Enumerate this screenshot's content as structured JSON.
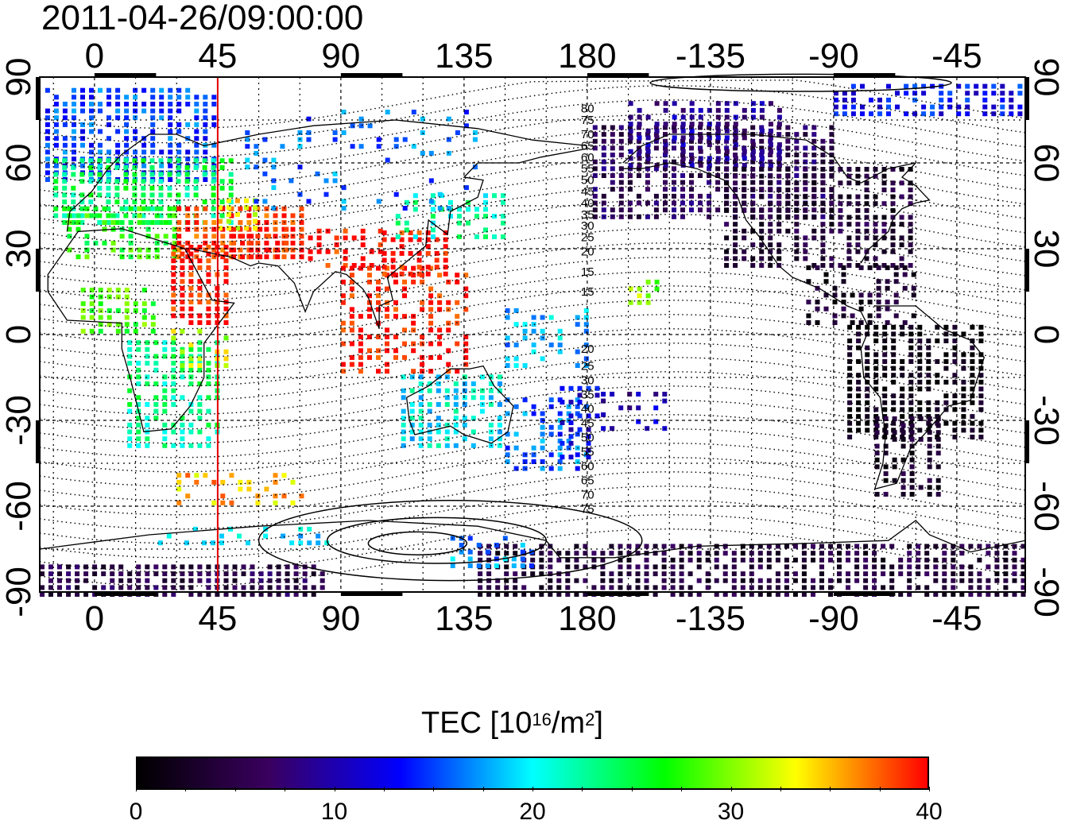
{
  "title": "2011-04-26/09:00:00",
  "map": {
    "top_lon_ticks": [
      "0",
      "45",
      "90",
      "135",
      "180",
      "-135",
      "-90",
      "-45"
    ],
    "bottom_lon_ticks": [
      "0",
      "45",
      "90",
      "135",
      "180",
      "-135",
      "-90",
      "-45"
    ],
    "left_lat_ticks": [
      "90",
      "60",
      "30",
      "0",
      "-30",
      "-60",
      "-90"
    ],
    "right_lat_ticks": [
      "90",
      "60",
      "30",
      "0",
      "-30",
      "-60",
      "-90"
    ],
    "lon_range": [
      -20,
      340
    ],
    "lat_range": [
      -90,
      90
    ],
    "marker_longitude": 45,
    "marker_color": "#e00000",
    "contour_labels": [
      "80",
      "75",
      "70",
      "65",
      "60",
      "55",
      "50",
      "45",
      "40",
      "35",
      "30",
      "25",
      "20",
      "15",
      "15",
      "20",
      "25",
      "30",
      "35",
      "40",
      "45",
      "50",
      "55",
      "60",
      "65",
      "70",
      "75"
    ]
  },
  "colorbar": {
    "title_main": "TEC  [10",
    "title_sup1": "16",
    "title_mid": "/m",
    "title_sup2": "2",
    "title_end": "]",
    "ticks": [
      "0",
      "10",
      "20",
      "30",
      "40"
    ],
    "range": [
      0,
      40
    ],
    "colors": [
      "#000000",
      "#3a0060",
      "#0000ff",
      "#00ffff",
      "#00ff00",
      "#ffff00",
      "#ff0000"
    ]
  }
}
